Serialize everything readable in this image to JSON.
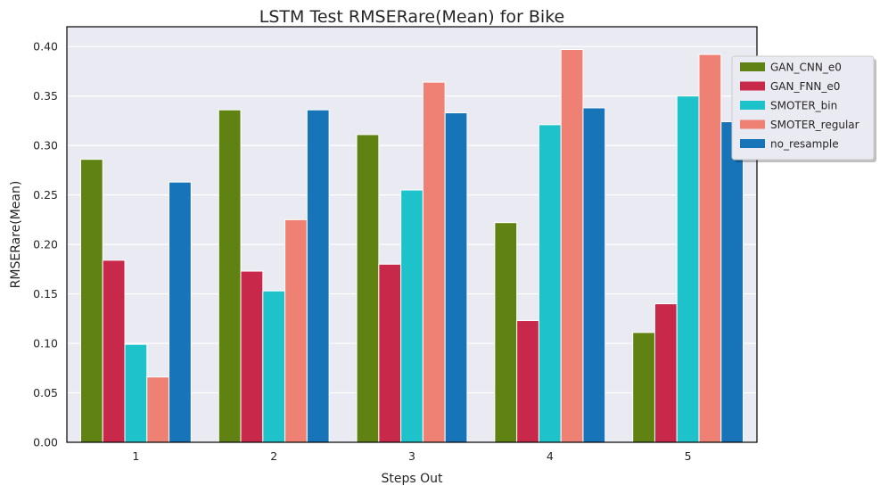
{
  "chart_data": {
    "type": "bar",
    "title": "LSTM Test RMSERare(Mean) for Bike",
    "xlabel": "Steps Out",
    "ylabel": "RMSERare(Mean)",
    "categories": [
      "1",
      "2",
      "3",
      "4",
      "5"
    ],
    "ylim": [
      0,
      0.42
    ],
    "yticks": [
      "0.00",
      "0.05",
      "0.10",
      "0.15",
      "0.20",
      "0.25",
      "0.30",
      "0.35",
      "0.40"
    ],
    "ytick_values": [
      0,
      0.05,
      0.1,
      0.15,
      0.2,
      0.25,
      0.3,
      0.35,
      0.4
    ],
    "grid": true,
    "legend_position": "upper right, outside",
    "series": [
      {
        "name": "GAN_CNN_e0",
        "color": "#5f8212",
        "values": [
          0.286,
          0.336,
          0.311,
          0.222,
          0.111
        ]
      },
      {
        "name": "GAN_FNN_e0",
        "color": "#c8294b",
        "values": [
          0.184,
          0.173,
          0.18,
          0.123,
          0.14
        ]
      },
      {
        "name": "SMOTER_bin",
        "color": "#1ec2cb",
        "values": [
          0.099,
          0.153,
          0.255,
          0.321,
          0.35
        ]
      },
      {
        "name": "SMOTER_regular",
        "color": "#ee8074",
        "values": [
          0.066,
          0.225,
          0.364,
          0.397,
          0.392
        ]
      },
      {
        "name": "no_resample",
        "color": "#1874b8",
        "values": [
          0.263,
          0.336,
          0.333,
          0.338,
          0.324
        ]
      }
    ]
  }
}
